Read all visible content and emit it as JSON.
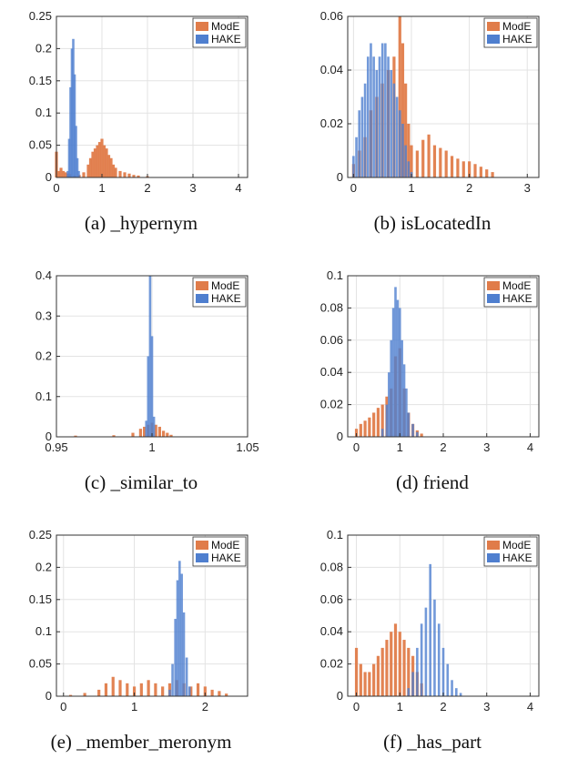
{
  "colors": {
    "mode": "#e07c4a",
    "hake": "#4f7fcf",
    "overlap": "#7a6c9a"
  },
  "chart_data": [
    {
      "id": "a",
      "type": "bar",
      "caption": "(a) _hypernym",
      "xlim": [
        0,
        4.2
      ],
      "ylim": [
        0,
        0.25
      ],
      "xticks": [
        0,
        1,
        2,
        3,
        4
      ],
      "xtick_labels": [
        "0",
        "1",
        "2",
        "3",
        "4"
      ],
      "yticks": [
        0,
        0.05,
        0.1,
        0.15,
        0.2,
        0.25
      ],
      "ytick_labels": [
        "0",
        "0.05",
        "0.1",
        "0.15",
        "0.2",
        "0.25"
      ],
      "legend": {
        "position": "top-right",
        "entries": [
          "ModE",
          "HAKE"
        ]
      },
      "series": [
        {
          "name": "ModE",
          "x": [
            0.0,
            0.05,
            0.1,
            0.15,
            0.2,
            0.25,
            0.3,
            0.4,
            0.5,
            0.6,
            0.7,
            0.75,
            0.8,
            0.85,
            0.9,
            0.95,
            1.0,
            1.05,
            1.1,
            1.15,
            1.2,
            1.25,
            1.3,
            1.4,
            1.5,
            1.6,
            1.7,
            1.8,
            2.0
          ],
          "values": [
            0.04,
            0.01,
            0.015,
            0.01,
            0.008,
            0.006,
            0.005,
            0.003,
            0.004,
            0.008,
            0.02,
            0.03,
            0.04,
            0.045,
            0.05,
            0.055,
            0.06,
            0.05,
            0.045,
            0.035,
            0.03,
            0.02,
            0.015,
            0.01,
            0.008,
            0.006,
            0.004,
            0.003,
            0.002
          ]
        },
        {
          "name": "HAKE",
          "x": [
            0.25,
            0.28,
            0.31,
            0.34,
            0.37,
            0.4,
            0.43,
            0.46,
            0.49
          ],
          "values": [
            0.01,
            0.06,
            0.14,
            0.2,
            0.215,
            0.16,
            0.08,
            0.03,
            0.01
          ]
        }
      ]
    },
    {
      "id": "b",
      "type": "bar",
      "caption": "(b) isLocatedIn",
      "xlim": [
        -0.1,
        3.2
      ],
      "ylim": [
        0,
        0.06
      ],
      "xticks": [
        0,
        1,
        2,
        3
      ],
      "xtick_labels": [
        "0",
        "1",
        "2",
        "3"
      ],
      "yticks": [
        0,
        0.02,
        0.04,
        0.06
      ],
      "ytick_labels": [
        "0",
        "0.02",
        "0.04",
        "0.06"
      ],
      "legend": {
        "position": "top-right",
        "entries": [
          "ModE",
          "HAKE"
        ]
      },
      "series": [
        {
          "name": "ModE",
          "x": [
            0.0,
            0.1,
            0.2,
            0.3,
            0.4,
            0.5,
            0.6,
            0.7,
            0.8,
            0.85,
            0.9,
            0.95,
            1.0,
            1.1,
            1.2,
            1.3,
            1.4,
            1.5,
            1.6,
            1.7,
            1.8,
            1.9,
            2.0,
            2.1,
            2.2,
            2.3,
            2.4
          ],
          "values": [
            0.005,
            0.01,
            0.015,
            0.025,
            0.03,
            0.035,
            0.04,
            0.045,
            0.06,
            0.05,
            0.035,
            0.02,
            0.012,
            0.01,
            0.014,
            0.016,
            0.012,
            0.011,
            0.01,
            0.008,
            0.007,
            0.006,
            0.006,
            0.005,
            0.004,
            0.003,
            0.002
          ]
        },
        {
          "name": "HAKE",
          "x": [
            0.0,
            0.05,
            0.1,
            0.15,
            0.2,
            0.25,
            0.3,
            0.35,
            0.4,
            0.45,
            0.5,
            0.55,
            0.6,
            0.65,
            0.7,
            0.75,
            0.8,
            0.85,
            0.9,
            0.95,
            1.0
          ],
          "values": [
            0.008,
            0.015,
            0.025,
            0.03,
            0.035,
            0.045,
            0.05,
            0.045,
            0.04,
            0.045,
            0.05,
            0.05,
            0.045,
            0.04,
            0.035,
            0.03,
            0.025,
            0.02,
            0.012,
            0.006,
            0.002
          ]
        }
      ]
    },
    {
      "id": "c",
      "type": "bar",
      "caption": "(c) _similar_to",
      "xlim": [
        0.95,
        1.05
      ],
      "ylim": [
        0,
        0.4
      ],
      "xticks": [
        0.95,
        1,
        1.05
      ],
      "xtick_labels": [
        "0.95",
        "1",
        "1.05"
      ],
      "yticks": [
        0,
        0.1,
        0.2,
        0.3,
        0.4
      ],
      "ytick_labels": [
        "0",
        "0.1",
        "0.2",
        "0.3",
        "0.4"
      ],
      "legend": {
        "position": "top-right",
        "entries": [
          "ModE",
          "HAKE"
        ]
      },
      "series": [
        {
          "name": "ModE",
          "x": [
            0.96,
            0.98,
            0.99,
            0.994,
            0.996,
            0.998,
            1.0,
            1.002,
            1.004,
            1.006,
            1.008,
            1.01
          ],
          "values": [
            0.003,
            0.004,
            0.01,
            0.02,
            0.025,
            0.03,
            0.035,
            0.03,
            0.025,
            0.015,
            0.01,
            0.005
          ]
        },
        {
          "name": "HAKE",
          "x": [
            0.997,
            0.998,
            0.999,
            1.0,
            1.001
          ],
          "values": [
            0.04,
            0.2,
            0.4,
            0.25,
            0.05
          ]
        }
      ]
    },
    {
      "id": "d",
      "type": "bar",
      "caption": "(d) friend",
      "xlim": [
        -0.2,
        4.2
      ],
      "ylim": [
        0,
        0.1
      ],
      "xticks": [
        0,
        1,
        2,
        3,
        4
      ],
      "xtick_labels": [
        "0",
        "1",
        "2",
        "3",
        "4"
      ],
      "yticks": [
        0,
        0.02,
        0.04,
        0.06,
        0.08,
        0.1
      ],
      "ytick_labels": [
        "0",
        "0.02",
        "0.04",
        "0.06",
        "0.08",
        "0.1"
      ],
      "legend": {
        "position": "top-right",
        "entries": [
          "ModE",
          "HAKE"
        ]
      },
      "series": [
        {
          "name": "ModE",
          "x": [
            0.0,
            0.1,
            0.2,
            0.3,
            0.4,
            0.5,
            0.6,
            0.7,
            0.8,
            0.9,
            1.0,
            1.1,
            1.2,
            1.3,
            1.4,
            1.5
          ],
          "values": [
            0.005,
            0.008,
            0.01,
            0.012,
            0.015,
            0.018,
            0.02,
            0.025,
            0.03,
            0.05,
            0.055,
            0.03,
            0.015,
            0.008,
            0.004,
            0.002
          ]
        },
        {
          "name": "HAKE",
          "x": [
            0.6,
            0.7,
            0.75,
            0.8,
            0.85,
            0.9,
            0.95,
            1.0,
            1.05,
            1.1,
            1.15,
            1.2,
            1.3,
            1.4
          ],
          "values": [
            0.005,
            0.02,
            0.04,
            0.06,
            0.08,
            0.093,
            0.085,
            0.08,
            0.06,
            0.045,
            0.03,
            0.015,
            0.008,
            0.003
          ]
        }
      ]
    },
    {
      "id": "e",
      "type": "bar",
      "caption": "(e) _member_meronym",
      "xlim": [
        -0.1,
        2.6
      ],
      "ylim": [
        0,
        0.25
      ],
      "xticks": [
        0,
        1,
        2
      ],
      "xtick_labels": [
        "0",
        "1",
        "2"
      ],
      "yticks": [
        0,
        0.05,
        0.1,
        0.15,
        0.2,
        0.25
      ],
      "ytick_labels": [
        "0",
        "0.05",
        "0.1",
        "0.15",
        "0.2",
        "0.25"
      ],
      "legend": {
        "position": "top-right",
        "entries": [
          "ModE",
          "HAKE"
        ]
      },
      "series": [
        {
          "name": "ModE",
          "x": [
            0.1,
            0.3,
            0.5,
            0.6,
            0.7,
            0.8,
            0.9,
            1.0,
            1.1,
            1.2,
            1.3,
            1.4,
            1.5,
            1.6,
            1.7,
            1.8,
            1.9,
            2.0,
            2.1,
            2.2,
            2.3
          ],
          "values": [
            0.002,
            0.005,
            0.01,
            0.02,
            0.03,
            0.025,
            0.02,
            0.015,
            0.02,
            0.025,
            0.02,
            0.015,
            0.02,
            0.025,
            0.02,
            0.015,
            0.02,
            0.015,
            0.01,
            0.008,
            0.004
          ]
        },
        {
          "name": "HAKE",
          "x": [
            1.5,
            1.54,
            1.58,
            1.61,
            1.64,
            1.67,
            1.7,
            1.74,
            1.78
          ],
          "values": [
            0.01,
            0.05,
            0.12,
            0.18,
            0.21,
            0.19,
            0.13,
            0.06,
            0.015
          ]
        }
      ]
    },
    {
      "id": "f",
      "type": "bar",
      "caption": "(f) _has_part",
      "xlim": [
        -0.2,
        4.2
      ],
      "ylim": [
        0,
        0.1
      ],
      "xticks": [
        0,
        1,
        2,
        3,
        4
      ],
      "xtick_labels": [
        "0",
        "1",
        "2",
        "3",
        "4"
      ],
      "yticks": [
        0,
        0.02,
        0.04,
        0.06,
        0.08,
        0.1
      ],
      "ytick_labels": [
        "0",
        "0.02",
        "0.04",
        "0.06",
        "0.08",
        "0.1"
      ],
      "legend": {
        "position": "top-right",
        "entries": [
          "ModE",
          "HAKE"
        ]
      },
      "series": [
        {
          "name": "ModE",
          "x": [
            0.0,
            0.1,
            0.2,
            0.3,
            0.4,
            0.5,
            0.6,
            0.7,
            0.8,
            0.9,
            1.0,
            1.1,
            1.2,
            1.3,
            1.4,
            1.5
          ],
          "values": [
            0.03,
            0.02,
            0.015,
            0.015,
            0.02,
            0.025,
            0.03,
            0.035,
            0.04,
            0.045,
            0.04,
            0.035,
            0.03,
            0.025,
            0.015,
            0.008
          ]
        },
        {
          "name": "HAKE",
          "x": [
            1.2,
            1.3,
            1.4,
            1.5,
            1.6,
            1.7,
            1.8,
            1.9,
            2.0,
            2.1,
            2.2,
            2.3,
            2.4
          ],
          "values": [
            0.005,
            0.015,
            0.03,
            0.045,
            0.055,
            0.082,
            0.06,
            0.045,
            0.03,
            0.02,
            0.01,
            0.005,
            0.002
          ]
        }
      ]
    }
  ]
}
